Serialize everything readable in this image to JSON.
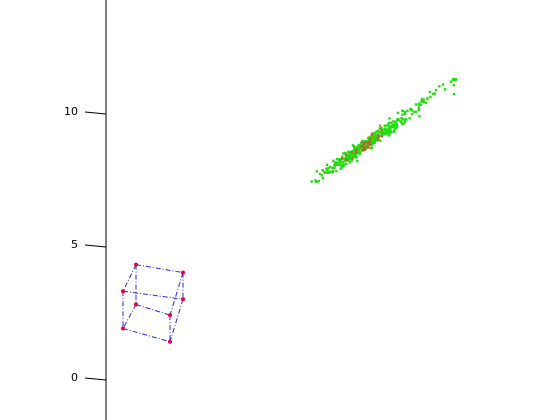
{
  "chart_data": {
    "type": "scatter",
    "title": "",
    "xlabel": "",
    "ylabel": "",
    "ylim": [
      -1.5,
      14.5
    ],
    "yticks": [
      {
        "value": 0,
        "label": "0"
      },
      {
        "value": 5,
        "label": "5"
      },
      {
        "value": 10,
        "label": "10"
      }
    ],
    "grid": false,
    "colors": {
      "axis": "#000000",
      "cloud": "#22dd11",
      "cloud_core": "#cc5533",
      "cube_edges": "#2b2bcc",
      "cube_vertices": "#dd0044"
    },
    "series": [
      {
        "type": "point-cloud",
        "center_y": 8.5,
        "end_low_y": 7.4,
        "end_high_y": 11.2,
        "approx_points": 380
      },
      {
        "type": "wireframe-box",
        "vertices_y": [
          4.3,
          4.0,
          3.3,
          3.0,
          2.8,
          2.4,
          1.9,
          1.4
        ]
      }
    ]
  }
}
